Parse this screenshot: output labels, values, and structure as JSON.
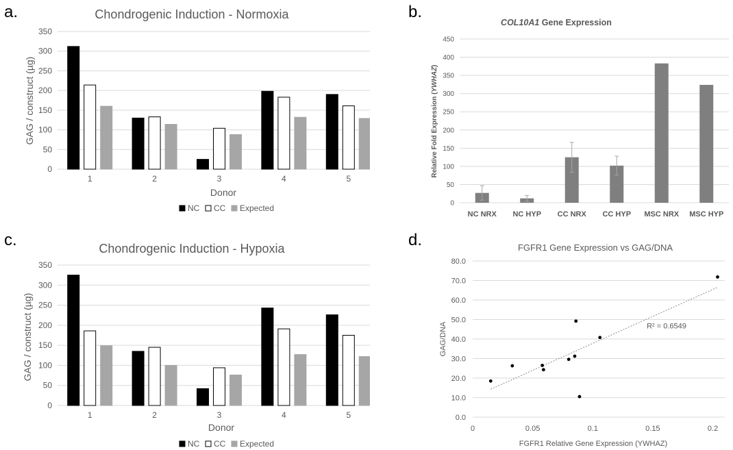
{
  "panels": {
    "a": {
      "label": "a.",
      "chart": {
        "type": "bar",
        "title": "Chondrogenic Induction - Normoxia",
        "xlabel": "Donor",
        "ylabel": "GAG / construct (µg)",
        "ylim": [
          0,
          350
        ],
        "yticks": [
          0,
          50,
          100,
          150,
          200,
          250,
          300,
          350
        ],
        "categories": [
          "1",
          "2",
          "3",
          "4",
          "5"
        ],
        "series": [
          {
            "name": "NC",
            "values": [
              312,
              130,
              25,
              198,
              190
            ],
            "fill": "#000000",
            "stroke": "#000000"
          },
          {
            "name": "CC",
            "values": [
              214,
              133,
              104,
              183,
              161
            ],
            "fill": "#ffffff",
            "stroke": "#000000"
          },
          {
            "name": "Expected",
            "values": [
              160,
              114,
              88,
              132,
              129
            ],
            "fill": "#a6a6a6",
            "stroke": "#a6a6a6"
          }
        ],
        "grid": true,
        "legend": "bottom"
      }
    },
    "b": {
      "label": "b.",
      "chart": {
        "type": "bar",
        "title_gene": "COL10A1",
        "title_rest": " Gene Expression",
        "ylabel_main": "Relative Fold Expression (",
        "ylabel_ital": "YWHAZ",
        "ylabel_end": ")",
        "ylim": [
          0,
          450
        ],
        "yticks": [
          0,
          50,
          100,
          150,
          200,
          250,
          300,
          350,
          400,
          450
        ],
        "categories": [
          "NC NRX",
          "NC HYP",
          "CC NRX",
          "CC HYP",
          "MSC NRX",
          "MSC HYP"
        ],
        "values": [
          27,
          12,
          125,
          102,
          383,
          324
        ],
        "errors": [
          20,
          8,
          41,
          26,
          0,
          0
        ],
        "bar_color": "#7f7f7f",
        "grid": true
      }
    },
    "c": {
      "label": "c.",
      "chart": {
        "type": "bar",
        "title": "Chondrogenic Induction - Hypoxia",
        "xlabel": "Donor",
        "ylabel": "GAG / construct (µg)",
        "ylim": [
          0,
          350
        ],
        "yticks": [
          0,
          50,
          100,
          150,
          200,
          250,
          300,
          350
        ],
        "categories": [
          "1",
          "2",
          "3",
          "4",
          "5"
        ],
        "series": [
          {
            "name": "NC",
            "values": [
              325,
              135,
              42,
              243,
              226
            ],
            "fill": "#000000",
            "stroke": "#000000"
          },
          {
            "name": "CC",
            "values": [
              186,
              145,
              94,
              191,
              175
            ],
            "fill": "#ffffff",
            "stroke": "#000000"
          },
          {
            "name": "Expected",
            "values": [
              149,
              100,
              76,
              127,
              122
            ],
            "fill": "#a6a6a6",
            "stroke": "#a6a6a6"
          }
        ],
        "grid": true,
        "legend": "bottom"
      }
    },
    "d": {
      "label": "d.",
      "chart": {
        "type": "scatter",
        "title": "FGFR1 Gene Expression vs GAG/DNA",
        "xlabel": "FGFR1 Relative Gene Expression (YWHAZ)",
        "ylabel": "GAG/DNA",
        "xlim": [
          0,
          0.21
        ],
        "ylim": [
          0,
          80
        ],
        "xticks": [
          0,
          0.05,
          0.1,
          0.15,
          0.2
        ],
        "xtick_labels": [
          "0",
          "0.05",
          "0.1",
          "0.15",
          "0.2"
        ],
        "yticks": [
          0,
          10,
          20,
          30,
          40,
          50,
          60,
          70,
          80
        ],
        "ytick_labels": [
          "0.0",
          "10.0",
          "20.0",
          "30.0",
          "40.0",
          "50.0",
          "60.0",
          "70.0",
          "80.0"
        ],
        "points": [
          {
            "x": 0.015,
            "y": 18.5
          },
          {
            "x": 0.033,
            "y": 26.3
          },
          {
            "x": 0.058,
            "y": 26.5
          },
          {
            "x": 0.059,
            "y": 24.3
          },
          {
            "x": 0.08,
            "y": 29.6
          },
          {
            "x": 0.085,
            "y": 31.2
          },
          {
            "x": 0.086,
            "y": 49.2
          },
          {
            "x": 0.089,
            "y": 10.5
          },
          {
            "x": 0.106,
            "y": 40.8
          },
          {
            "x": 0.204,
            "y": 71.8
          }
        ],
        "trendline": {
          "x": [
            0.015,
            0.204
          ],
          "y": [
            14.3,
            66.5
          ]
        },
        "r2_label": "R² = 0.6549",
        "r2_anchor": {
          "x": 0.145,
          "y": 45.5
        }
      }
    }
  }
}
